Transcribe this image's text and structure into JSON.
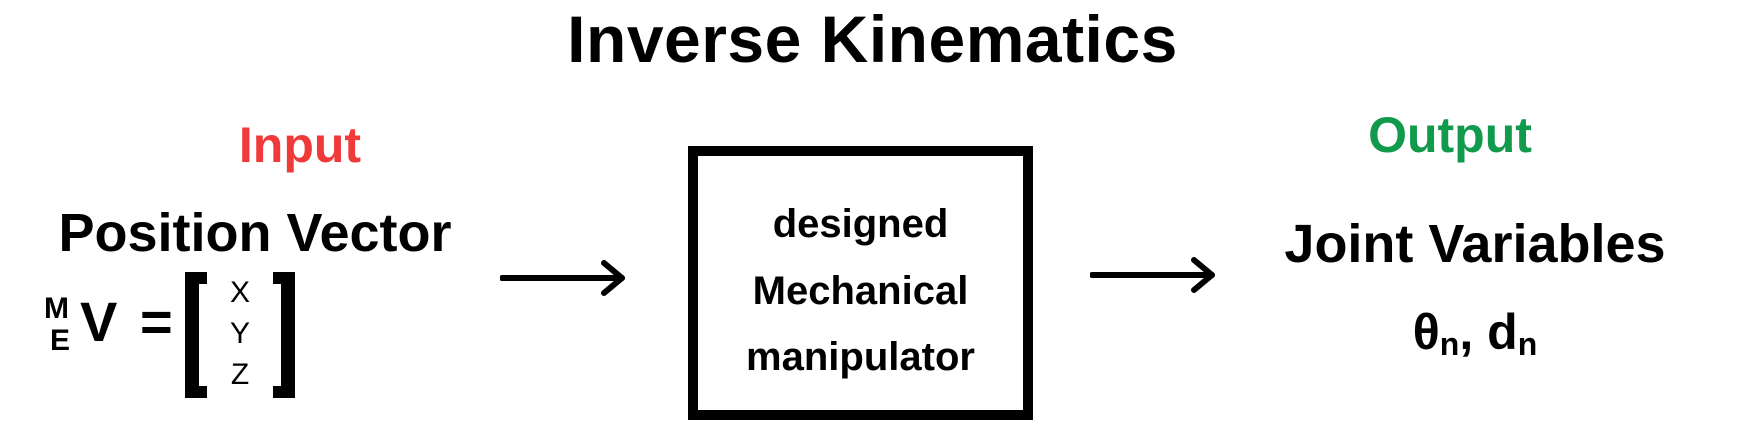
{
  "title": "Inverse Kinematics",
  "input": {
    "label": "Input",
    "color": "#f03a3a",
    "vector_label": "Position Vector",
    "formula": {
      "superscript": "M",
      "subscript": "E",
      "symbol": "V",
      "equals": "=",
      "matrix": [
        "X",
        "Y",
        "Z"
      ]
    }
  },
  "process": {
    "lines": [
      "designed",
      "Mechanical",
      "manipulator"
    ]
  },
  "output": {
    "label": "Output",
    "color": "#119a4c",
    "variables_label": "Joint Variables",
    "symbols": {
      "theta": "θ",
      "theta_sub": "n",
      "separator": ",",
      "d": "d",
      "d_sub": "n"
    }
  }
}
